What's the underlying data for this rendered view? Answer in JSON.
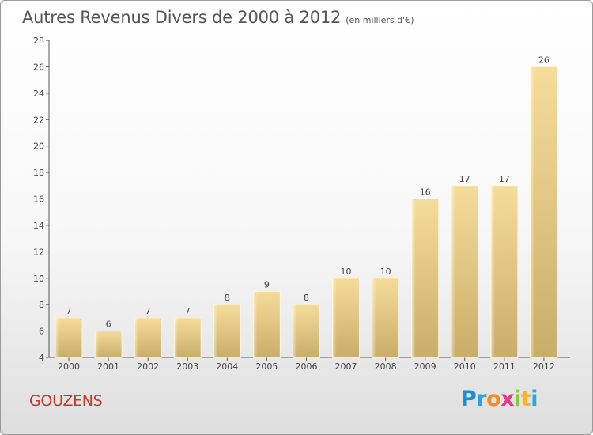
{
  "title": "Autres Revenus Divers de 2000 à 2012",
  "unit": "(en milliers d'€)",
  "commune": "GOUZENS",
  "logo": {
    "letters": [
      {
        "ch": "P",
        "color": "#1f8dd6"
      },
      {
        "ch": "r",
        "color": "#2aa5e0"
      },
      {
        "ch": "o",
        "color": "#f28c1e"
      },
      {
        "ch": "x",
        "color": "#e13b8a"
      },
      {
        "ch": "i",
        "color": "#8dc63f"
      },
      {
        "ch": "t",
        "color": "#f7b32b"
      },
      {
        "ch": "i",
        "color": "#2aa5e0"
      }
    ]
  },
  "chart_data": {
    "type": "bar",
    "categories": [
      "2000",
      "2001",
      "2002",
      "2003",
      "2004",
      "2005",
      "2006",
      "2007",
      "2008",
      "2009",
      "2010",
      "2011",
      "2012"
    ],
    "values": [
      7,
      6,
      7,
      7,
      8,
      9,
      8,
      10,
      10,
      16,
      17,
      17,
      26
    ],
    "ylim": [
      4,
      28
    ],
    "yticks": [
      4,
      6,
      8,
      10,
      12,
      14,
      16,
      18,
      20,
      22,
      24,
      26,
      28
    ],
    "grid": false,
    "bar_color": "#e4c57a"
  }
}
